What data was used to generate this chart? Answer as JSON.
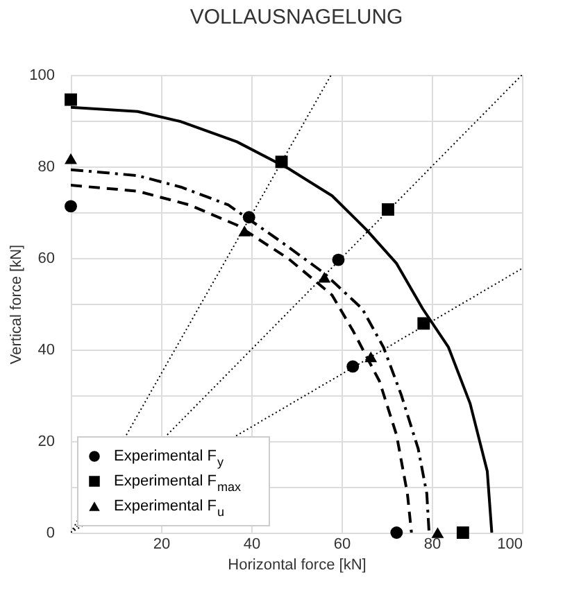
{
  "chart_data": {
    "type": "scatter",
    "title": "VOLLAUSNAGELUNG",
    "xlabel": "Horizontal force [kN]",
    "ylabel": "Vertical force [kN]",
    "xlim": [
      0,
      100
    ],
    "ylim": [
      0,
      100
    ],
    "xticks": [
      20,
      40,
      60,
      80,
      100
    ],
    "yticks": [
      0,
      {
        "value": 10,
        "label": null
      },
      20,
      {
        "value": 30,
        "label": null
      },
      40,
      {
        "value": 50,
        "label": null
      },
      60,
      {
        "value": 70,
        "label": null
      },
      80,
      {
        "value": 90,
        "label": null
      },
      100
    ],
    "grid": true,
    "legend": "bottom left",
    "series": [
      {
        "type": "line",
        "color": "#000000",
        "line_style": "dotted",
        "marker": "none",
        "x": [
          0,
          57.7
        ],
        "values": [
          0,
          100
        ]
      },
      {
        "type": "line",
        "color": "#000000",
        "line_style": "dotted",
        "marker": "none",
        "x": [
          0,
          100
        ],
        "values": [
          0,
          100
        ]
      },
      {
        "type": "line",
        "color": "#000000",
        "line_style": "dotted",
        "marker": "none",
        "x": [
          0,
          100
        ],
        "values": [
          0,
          57.7
        ]
      },
      {
        "type": "line",
        "color": "#000000",
        "line_style": "solid",
        "marker": "none",
        "x": [
          0,
          14.8,
          24.4,
          36.8,
          48.3,
          57.9,
          65.5,
          72.2,
          78,
          83.7,
          88.5,
          92.3,
          93.3
        ],
        "values": [
          92.9,
          92.0,
          89.8,
          85.4,
          79.5,
          73.6,
          66.2,
          58.8,
          48.9,
          40.5,
          28.2,
          13.4,
          0
        ]
      },
      {
        "type": "line",
        "color": "#000000",
        "line_style": "dashdot",
        "marker": "none",
        "x": [
          0,
          14.8,
          24.4,
          34.9,
          46.4,
          56,
          64.6,
          69.3,
          73.2,
          77,
          78.9,
          79.4
        ],
        "values": [
          79.3,
          78.0,
          75.5,
          71.6,
          63.7,
          56.8,
          48.9,
          40.5,
          30.2,
          18.3,
          8.5,
          0
        ]
      },
      {
        "type": "line",
        "color": "#000000",
        "line_style": "dashed",
        "marker": "none",
        "x": [
          0,
          14.8,
          26.3,
          36.8,
          48.3,
          57.9,
          62.6,
          68.4,
          72.2,
          74.6,
          75.5
        ],
        "values": [
          75.9,
          74.6,
          71.6,
          67.2,
          59.8,
          51.9,
          44.0,
          33.1,
          21.3,
          8.5,
          0
        ]
      },
      {
        "type": "scatter",
        "name": "Experimental F$_{y}$",
        "color": "#000000",
        "marker": "circle",
        "x": [
          0,
          39.5,
          59.3,
          62.5,
          72.2
        ],
        "values": [
          71.3,
          68.9,
          59.6,
          36.3,
          0
        ]
      },
      {
        "type": "scatter",
        "name": "Experimental F$_{max}$",
        "color": "#000000",
        "marker": "square",
        "x": [
          0,
          46.7,
          70.3,
          78.2,
          86.9
        ],
        "values": [
          94.6,
          81.0,
          70.6,
          45.7,
          0
        ]
      },
      {
        "type": "scatter",
        "name": "Experimental F$_{u}$",
        "color": "#000000",
        "marker": "triangle",
        "x": [
          0,
          38.5,
          56.2,
          66.5,
          81.3
        ],
        "values": [
          81.7,
          65.9,
          55.8,
          38.4,
          0
        ]
      }
    ]
  }
}
